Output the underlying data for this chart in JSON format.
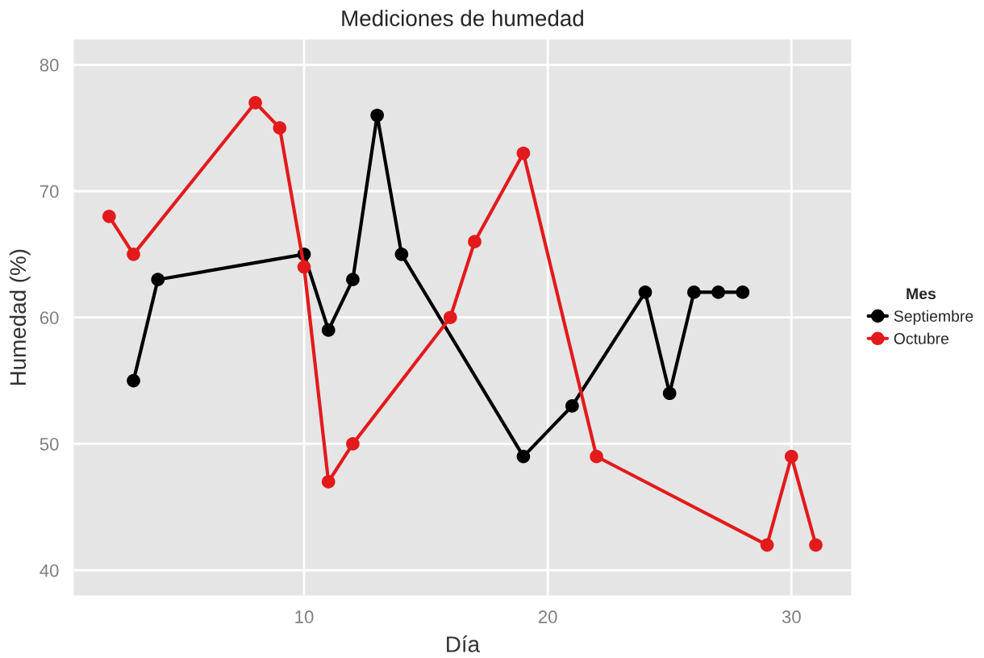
{
  "chart_data": {
    "type": "line",
    "title": "Mediciones de humedad",
    "xlabel": "Día",
    "ylabel": "Humedad (%)",
    "legend_title": "Mes",
    "series": [
      {
        "name": "Septiembre",
        "color": "#000000",
        "x": [
          3,
          4,
          10,
          11,
          12,
          13,
          14,
          19,
          21,
          24,
          25,
          26,
          27,
          28
        ],
        "values": [
          55,
          63,
          65,
          59,
          63,
          76,
          65,
          49,
          53,
          62,
          54,
          62,
          62,
          62
        ]
      },
      {
        "name": "Octubre",
        "color": "#e31a1c",
        "x": [
          2,
          3,
          8,
          9,
          10,
          11,
          12,
          16,
          17,
          19,
          22,
          29,
          30,
          31
        ],
        "values": [
          68,
          65,
          77,
          75,
          64,
          47,
          50,
          60,
          66,
          73,
          49,
          42,
          49,
          42
        ]
      }
    ],
    "xlim": [
      0.55,
      32.45
    ],
    "ylim": [
      38,
      82
    ],
    "xticks": [
      10,
      20,
      30
    ],
    "yticks": [
      40,
      50,
      60,
      70,
      80
    ],
    "grid": true,
    "legend": "right",
    "marker": "circle",
    "line_style": "solid"
  }
}
